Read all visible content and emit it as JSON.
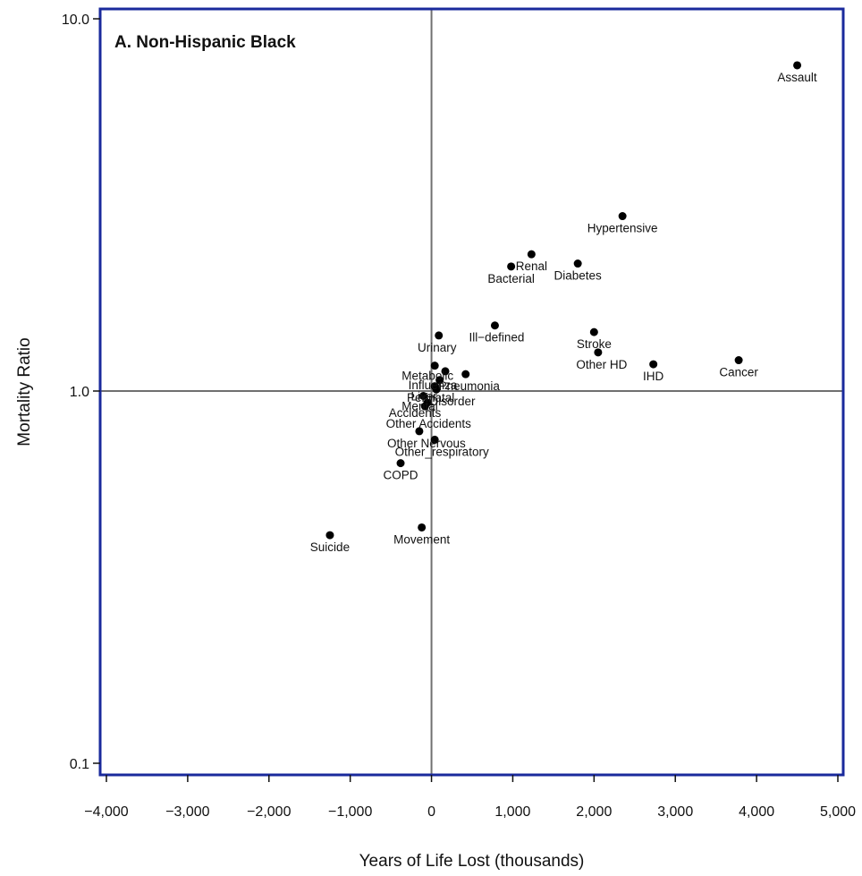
{
  "chart_data": {
    "type": "scatter",
    "title": "A. Non-Hispanic Black",
    "xlabel": "Years of Life Lost (thousands)",
    "ylabel": "Mortality Ratio",
    "x_scale": "linear",
    "y_scale": "log",
    "xlim": [
      -4000,
      5000
    ],
    "ylim": [
      0.1,
      10.0
    ],
    "x_ticks": [
      -4000,
      -3000,
      -2000,
      -1000,
      0,
      1000,
      2000,
      3000,
      4000,
      5000
    ],
    "x_tick_labels": [
      "−4,000",
      "−3,000",
      "−2,000",
      "−1,000",
      "0",
      "1,000",
      "2,000",
      "3,000",
      "4,000",
      "5,000"
    ],
    "y_ticks": [
      0.1,
      1.0,
      10.0
    ],
    "y_tick_labels": [
      "0.1",
      "1.0",
      "10.0"
    ],
    "reference_lines": {
      "x": 0,
      "y": 1.0
    },
    "grid": false,
    "legend": "none",
    "colors": {
      "frame": "#1a2a9c",
      "points": "#000000",
      "reference": "#707070"
    },
    "points": [
      {
        "label": "Assault",
        "x": 4500,
        "y": 7.5
      },
      {
        "label": "Hypertensive",
        "x": 2350,
        "y": 2.95
      },
      {
        "label": "Renal",
        "x": 1230,
        "y": 2.33
      },
      {
        "label": "Bacterial",
        "x": 980,
        "y": 2.16
      },
      {
        "label": "Diabetes",
        "x": 1800,
        "y": 2.2
      },
      {
        "label": "Ill−defined",
        "x": 780,
        "y": 1.5
      },
      {
        "label": "Stroke",
        "x": 2000,
        "y": 1.44
      },
      {
        "label": "Other HD",
        "x": 2050,
        "y": 1.27
      },
      {
        "label": "IHD",
        "x": 2730,
        "y": 1.18
      },
      {
        "label": "Cancer",
        "x": 3780,
        "y": 1.21
      },
      {
        "label": "Urinary",
        "x": 90,
        "y": 1.41
      },
      {
        "label": "Metabolic",
        "x": 40,
        "y": 1.17
      },
      {
        "label": "Influenza",
        "x": 170,
        "y": 1.13
      },
      {
        "label": "Pneumonia",
        "x": 420,
        "y": 1.11
      },
      {
        "label": "Perinatal",
        "x": 100,
        "y": 1.07
      },
      {
        "label": "Liver",
        "x": 40,
        "y": 1.03
      },
      {
        "label": "Disorder",
        "x": 60,
        "y": 1.01
      },
      {
        "label": "Mental",
        "x": -100,
        "y": 0.97
      },
      {
        "label": "Accidents",
        "x": -50,
        "y": 0.93
      },
      {
        "label": "Other Accidents",
        "x": -80,
        "y": 0.91
      },
      {
        "label": "Other Nervous",
        "x": -150,
        "y": 0.78
      },
      {
        "label": "Other_respiratory",
        "x": 40,
        "y": 0.74
      },
      {
        "label": "COPD",
        "x": -380,
        "y": 0.64
      },
      {
        "label": "Movement",
        "x": -120,
        "y": 0.43
      },
      {
        "label": "Suicide",
        "x": -1250,
        "y": 0.41
      }
    ]
  }
}
